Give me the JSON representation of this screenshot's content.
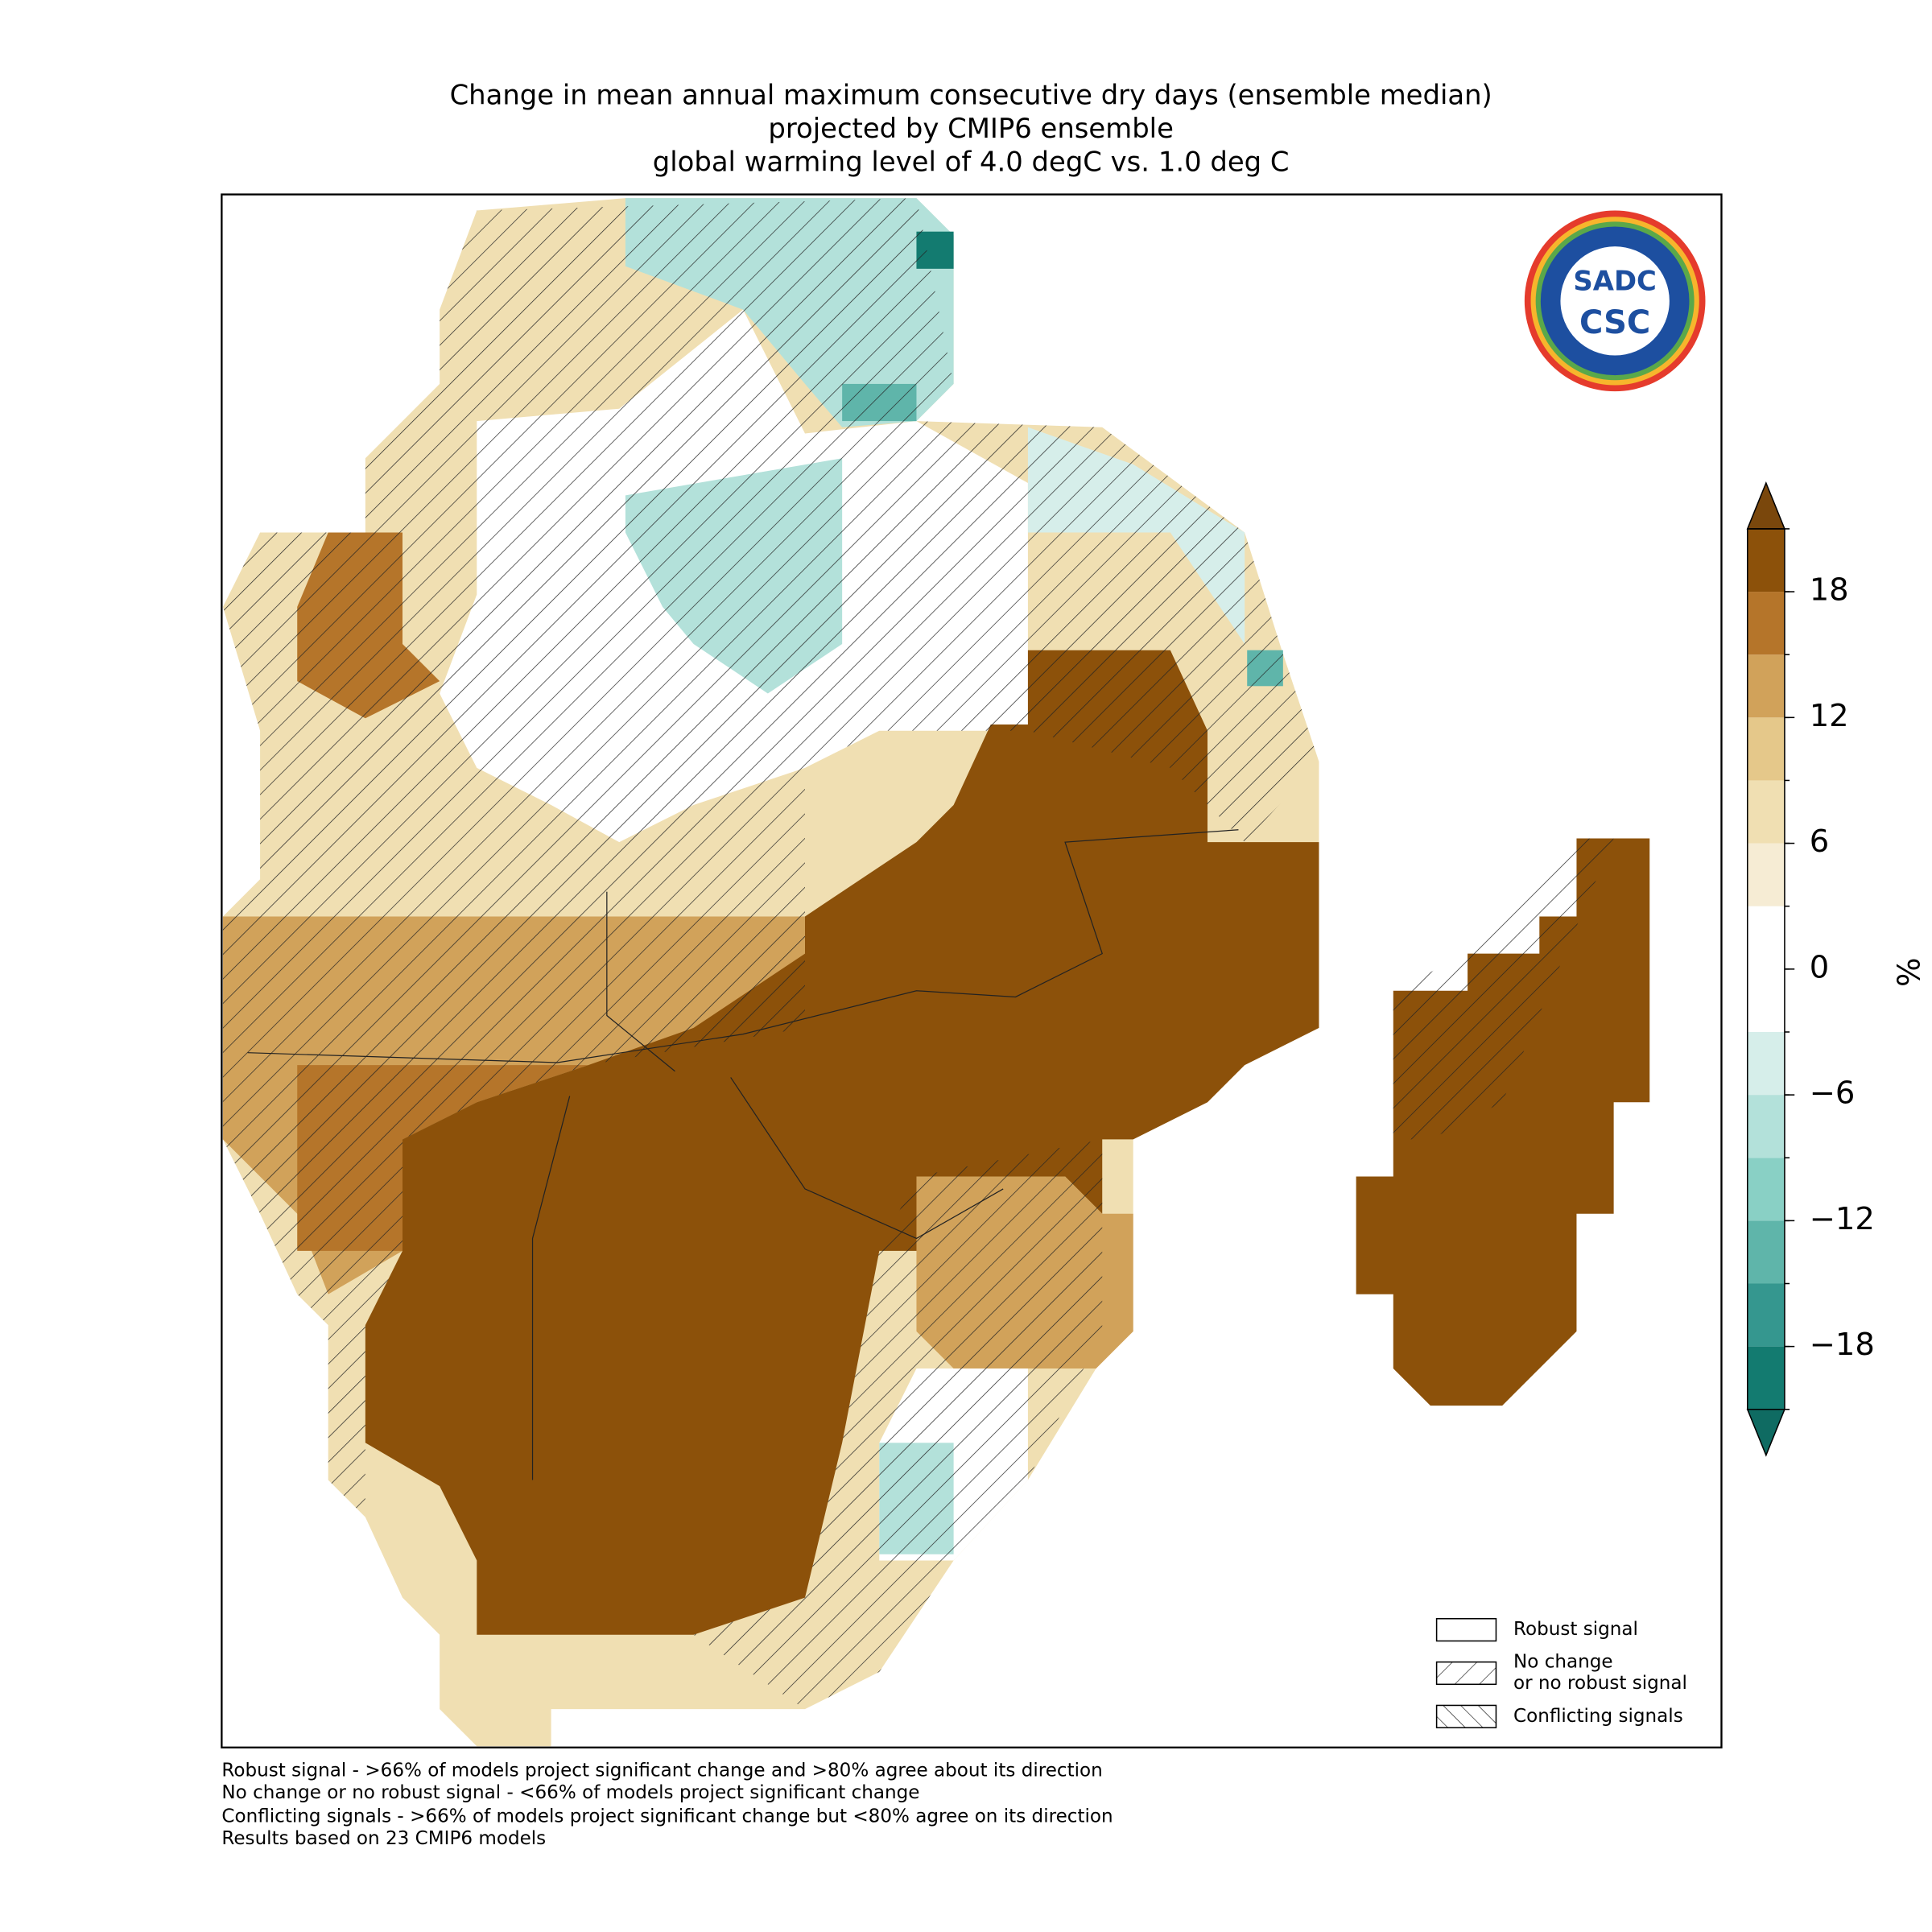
{
  "title": [
    "Change in mean annual maximum consecutive dry days (ensemble median)",
    "projected by CMIP6 ensemble",
    "global warming level of 4.0 degC vs. 1.0 deg C"
  ],
  "colorbar": {
    "bounds": [
      -21,
      -18,
      -15,
      -12,
      -9,
      -6,
      -3,
      0,
      3,
      6,
      9,
      12,
      15,
      18,
      21
    ],
    "colors": [
      "#137b70",
      "#35978f",
      "#5fb5aa",
      "#89d0c5",
      "#b3e1da",
      "#d6eeea",
      "#ffffff",
      "#ffffff",
      "#f6ecd4",
      "#f0dfb2",
      "#e5c88a",
      "#d1a25a",
      "#b5752a",
      "#8c510a"
    ],
    "extend_colors": [
      "#0f6b62",
      "#7a470c"
    ],
    "ticks": [
      {
        "value": -18,
        "label": "−18"
      },
      {
        "value": -12,
        "label": "−12"
      },
      {
        "value": -6,
        "label": "−6"
      },
      0,
      6,
      12,
      18
    ],
    "label": "%"
  },
  "legend": [
    "Robust signal",
    "No change\nor no robust signal",
    "Conflicting signals"
  ],
  "footnotes": [
    "Robust signal - >66% of models project significant change and >80% agree about its direction",
    "No change or no robust signal - <66% of models project significant change",
    "Conflicting signals - >66% of models project significant change but <80% agree on its direction",
    "Results based on 23 CMIP6 models"
  ],
  "logo": {
    "top": "SADC",
    "bottom": "CSC"
  }
}
